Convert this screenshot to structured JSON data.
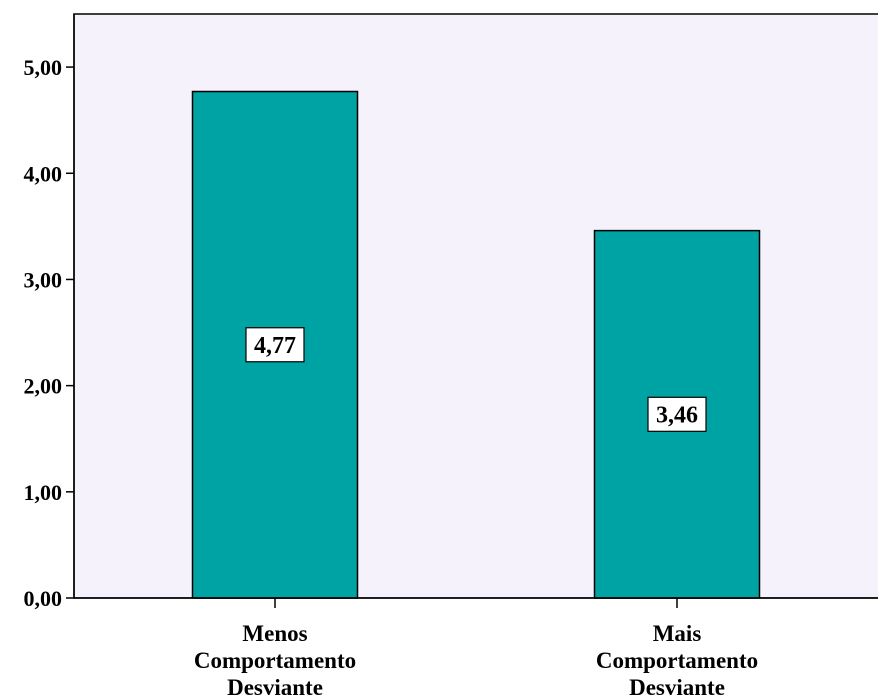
{
  "chart_data": {
    "type": "bar",
    "categories": [
      [
        "Menos",
        "Comportamento",
        "Desviante"
      ],
      [
        "Mais",
        "Comportamento",
        "Desviante"
      ]
    ],
    "values": [
      4.77,
      3.46
    ],
    "data_labels": [
      "4,77",
      "3,46"
    ],
    "ylim": [
      0,
      5.5
    ],
    "yticks": [
      0,
      1,
      2,
      3,
      4,
      5
    ],
    "ytick_labels": [
      "0,00",
      "1,00",
      "2,00",
      "3,00",
      "4,00",
      "5,00"
    ],
    "grid": false,
    "legend": "none",
    "colors": {
      "plot_background": "#F5F2FB",
      "bar_fill": "#00A3A3",
      "bar_stroke": "#000000",
      "axis": "#000000",
      "label_box": "#FFFFFF"
    }
  }
}
